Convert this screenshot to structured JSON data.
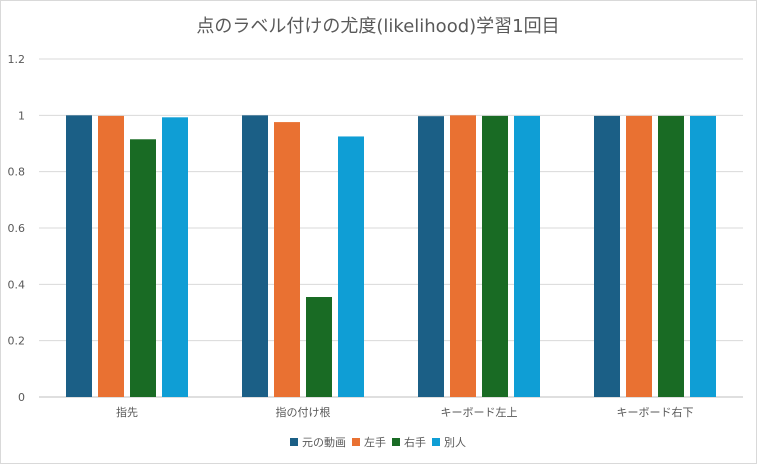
{
  "chart_data": {
    "type": "bar",
    "title": "点のラベル付けの尤度(likelihood)学習1回目",
    "xlabel": "",
    "ylabel": "",
    "categories": [
      "指先",
      "指の付け根",
      "キーボード左上",
      "キーボード右下"
    ],
    "series": [
      {
        "name": "元の動画",
        "color": "#1b5f86",
        "values": [
          1.0,
          1.0,
          0.997,
          0.998
        ]
      },
      {
        "name": "左手",
        "color": "#e97132",
        "values": [
          0.998,
          0.976,
          1.0,
          0.998
        ]
      },
      {
        "name": "右手",
        "color": "#196b24",
        "values": [
          0.915,
          0.355,
          0.998,
          0.998
        ]
      },
      {
        "name": "別人",
        "color": "#0f9ed5",
        "values": [
          0.993,
          0.925,
          0.998,
          0.998
        ]
      }
    ],
    "ylim": [
      0,
      1.2
    ],
    "yticks": [
      "0",
      "0.2",
      "0.4",
      "0.6",
      "0.8",
      "1",
      "1.2"
    ],
    "grid": true,
    "legend_position": "bottom"
  }
}
